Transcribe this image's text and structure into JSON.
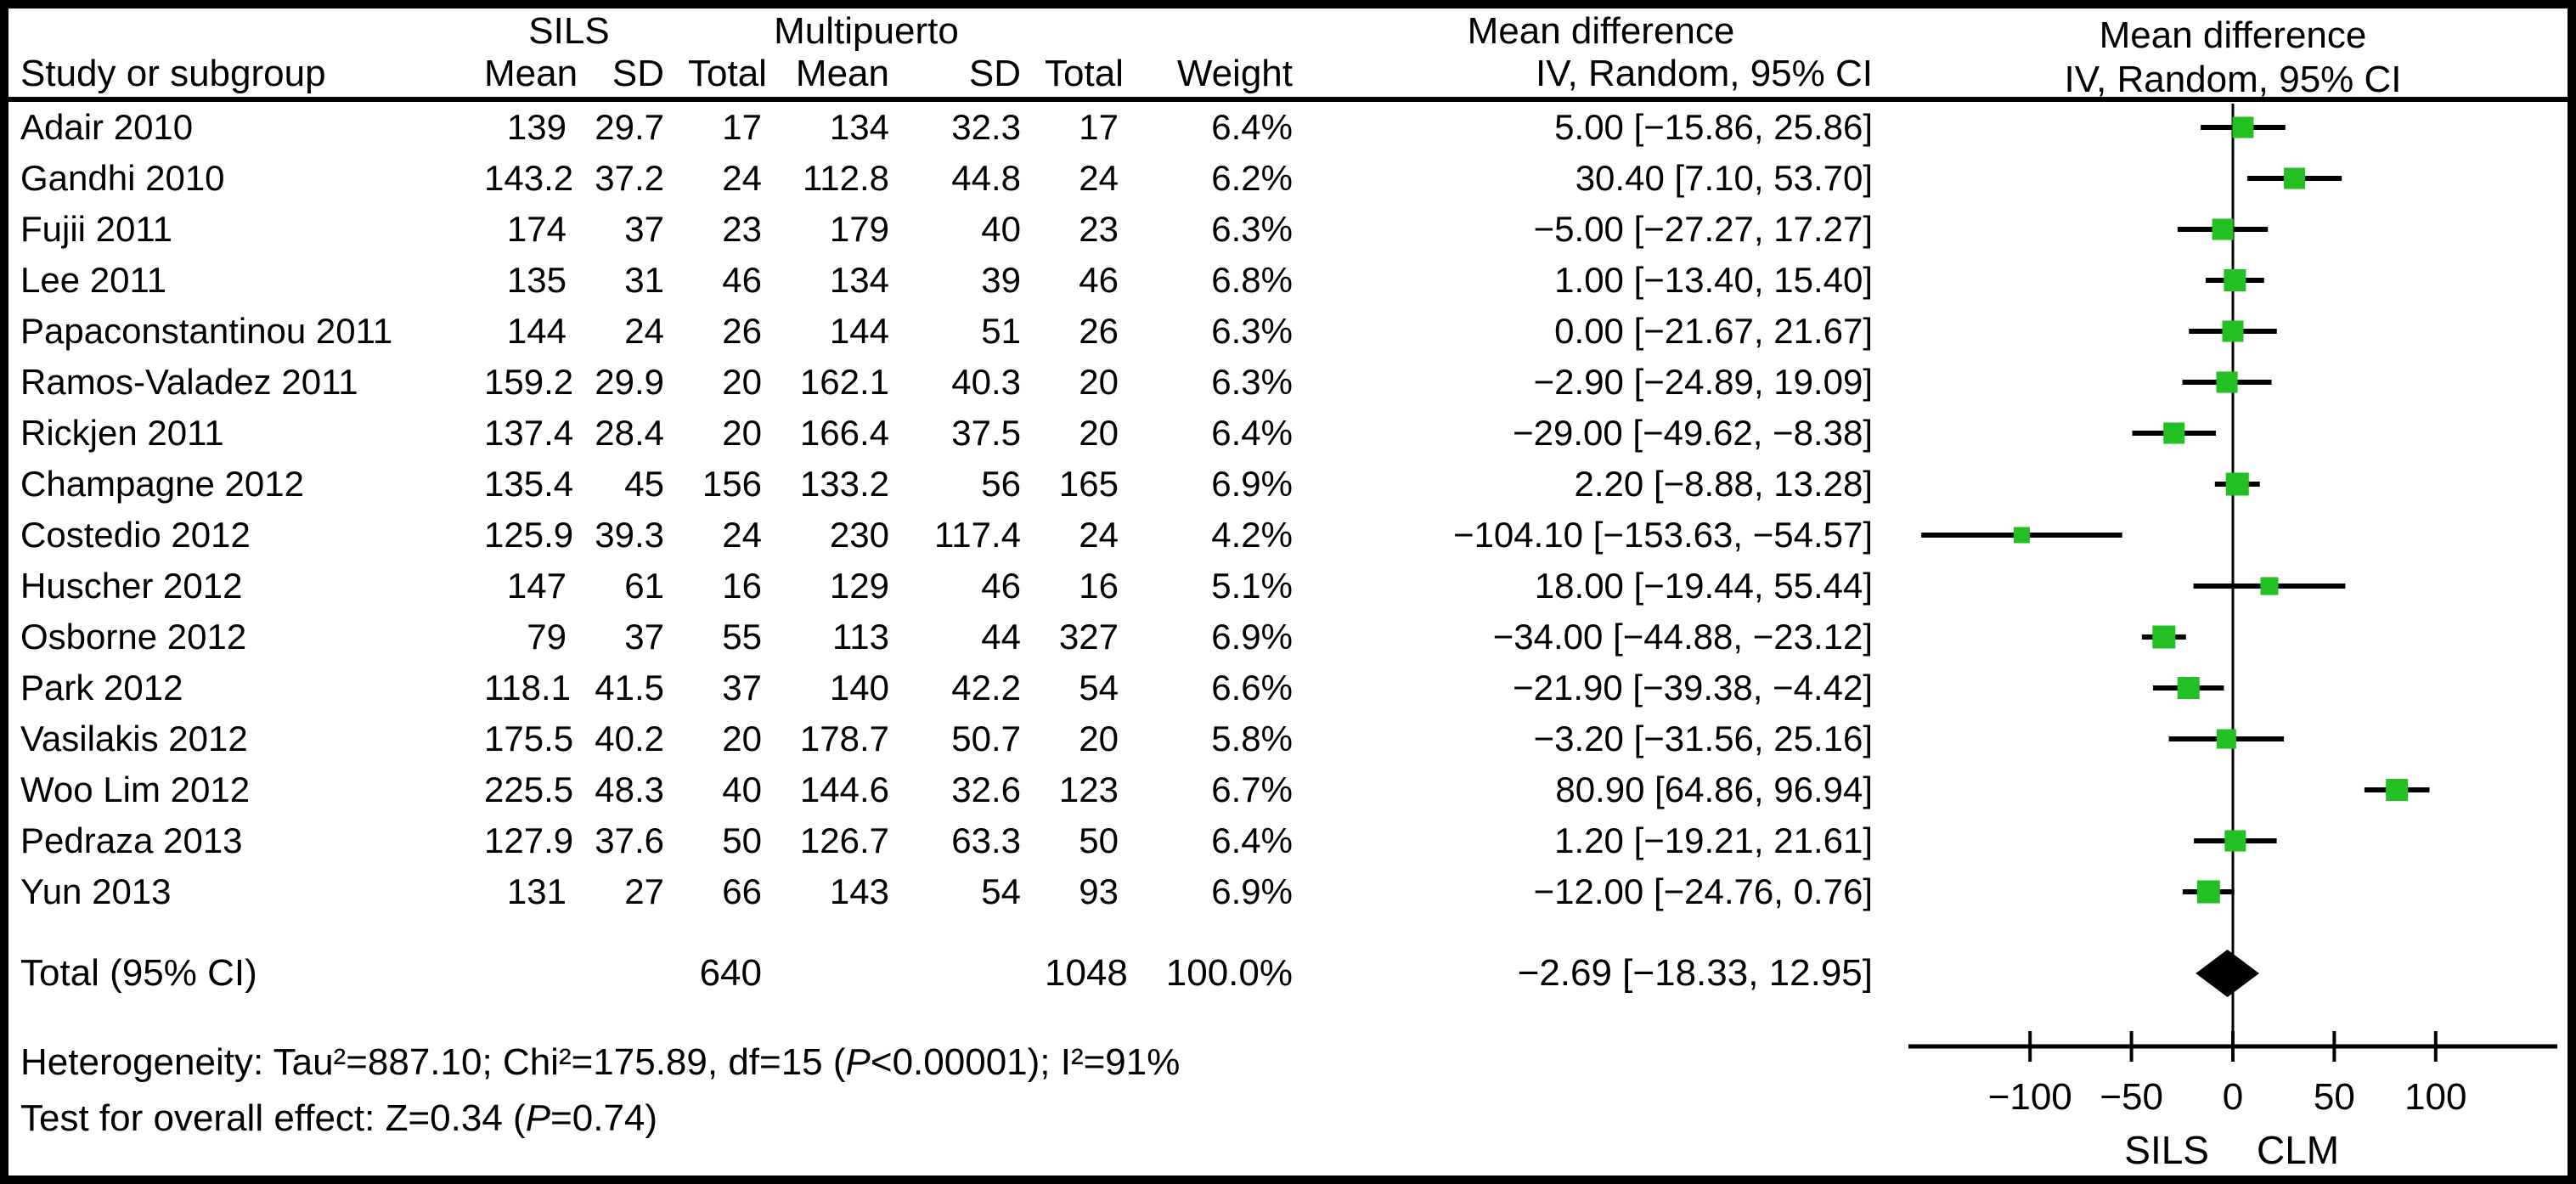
{
  "chart_data": {
    "type": "forest",
    "header": {
      "study_col": "Study or subgroup",
      "group1": "SILS",
      "group2": "Multipuerto",
      "mean": "Mean",
      "sd": "SD",
      "total": "Total",
      "weight": "Weight",
      "md_title": "Mean difference",
      "md_subtitle": "IV, Random, 95% CI",
      "plot_title": "Mean difference",
      "plot_subtitle": "IV, Random, 95% CI"
    },
    "studies": [
      {
        "name": "Adair 2010",
        "mean1": "139",
        "sd1": "29.7",
        "total1": "17",
        "mean2": "134",
        "sd2": "32.3",
        "total2": "17",
        "weight": "6.4%",
        "ci_text": "5.00 [−15.86, 25.86]",
        "est": 5.0,
        "lo": -15.86,
        "hi": 25.86
      },
      {
        "name": "Gandhi 2010",
        "mean1": "143.2",
        "sd1": "37.2",
        "total1": "24",
        "mean2": "112.8",
        "sd2": "44.8",
        "total2": "24",
        "weight": "6.2%",
        "ci_text": "30.40 [7.10, 53.70]",
        "est": 30.4,
        "lo": 7.1,
        "hi": 53.7
      },
      {
        "name": "Fujii 2011",
        "mean1": "174",
        "sd1": "37",
        "total1": "23",
        "mean2": "179",
        "sd2": "40",
        "total2": "23",
        "weight": "6.3%",
        "ci_text": "−5.00 [−27.27, 17.27]",
        "est": -5.0,
        "lo": -27.27,
        "hi": 17.27
      },
      {
        "name": "Lee 2011",
        "mean1": "135",
        "sd1": "31",
        "total1": "46",
        "mean2": "134",
        "sd2": "39",
        "total2": "46",
        "weight": "6.8%",
        "ci_text": "1.00 [−13.40, 15.40]",
        "est": 1.0,
        "lo": -13.4,
        "hi": 15.4
      },
      {
        "name": "Papaconstantinou 2011",
        "mean1": "144",
        "sd1": "24",
        "total1": "26",
        "mean2": "144",
        "sd2": "51",
        "total2": "26",
        "weight": "6.3%",
        "ci_text": "0.00 [−21.67, 21.67]",
        "est": 0.0,
        "lo": -21.67,
        "hi": 21.67
      },
      {
        "name": "Ramos-Valadez 2011",
        "mean1": "159.2",
        "sd1": "29.9",
        "total1": "20",
        "mean2": "162.1",
        "sd2": "40.3",
        "total2": "20",
        "weight": "6.3%",
        "ci_text": "−2.90 [−24.89, 19.09]",
        "est": -2.9,
        "lo": -24.89,
        "hi": 19.09
      },
      {
        "name": "Rickjen 2011",
        "mean1": "137.4",
        "sd1": "28.4",
        "total1": "20",
        "mean2": "166.4",
        "sd2": "37.5",
        "total2": "20",
        "weight": "6.4%",
        "ci_text": "−29.00 [−49.62, −8.38]",
        "est": -29.0,
        "lo": -49.62,
        "hi": -8.38
      },
      {
        "name": "Champagne 2012",
        "mean1": "135.4",
        "sd1": "45",
        "total1": "156",
        "mean2": "133.2",
        "sd2": "56",
        "total2": "165",
        "weight": "6.9%",
        "ci_text": "2.20 [−8.88, 13.28]",
        "est": 2.2,
        "lo": -8.88,
        "hi": 13.28
      },
      {
        "name": "Costedio 2012",
        "mean1": "125.9",
        "sd1": "39.3",
        "total1": "24",
        "mean2": "230",
        "sd2": "117.4",
        "total2": "24",
        "weight": "4.2%",
        "ci_text": "−104.10 [−153.63, −54.57]",
        "est": -104.1,
        "lo": -153.63,
        "hi": -54.57
      },
      {
        "name": "Huscher 2012",
        "mean1": "147",
        "sd1": "61",
        "total1": "16",
        "mean2": "129",
        "sd2": "46",
        "total2": "16",
        "weight": "5.1%",
        "ci_text": "18.00 [−19.44, 55.44]",
        "est": 18.0,
        "lo": -19.44,
        "hi": 55.44
      },
      {
        "name": "Osborne 2012",
        "mean1": "79",
        "sd1": "37",
        "total1": "55",
        "mean2": "113",
        "sd2": "44",
        "total2": "327",
        "weight": "6.9%",
        "ci_text": "−34.00 [−44.88, −23.12]",
        "est": -34.0,
        "lo": -44.88,
        "hi": -23.12
      },
      {
        "name": "Park 2012",
        "mean1": "118.1",
        "sd1": "41.5",
        "total1": "37",
        "mean2": "140",
        "sd2": "42.2",
        "total2": "54",
        "weight": "6.6%",
        "ci_text": "−21.90 [−39.38, −4.42]",
        "est": -21.9,
        "lo": -39.38,
        "hi": -4.42
      },
      {
        "name": "Vasilakis 2012",
        "mean1": "175.5",
        "sd1": "40.2",
        "total1": "20",
        "mean2": "178.7",
        "sd2": "50.7",
        "total2": "20",
        "weight": "5.8%",
        "ci_text": "−3.20 [−31.56, 25.16]",
        "est": -3.2,
        "lo": -31.56,
        "hi": 25.16
      },
      {
        "name": "Woo Lim 2012",
        "mean1": "225.5",
        "sd1": "48.3",
        "total1": "40",
        "mean2": "144.6",
        "sd2": "32.6",
        "total2": "123",
        "weight": "6.7%",
        "ci_text": "80.90 [64.86, 96.94]",
        "est": 80.9,
        "lo": 64.86,
        "hi": 96.94
      },
      {
        "name": "Pedraza 2013",
        "mean1": "127.9",
        "sd1": "37.6",
        "total1": "50",
        "mean2": "126.7",
        "sd2": "63.3",
        "total2": "50",
        "weight": "6.4%",
        "ci_text": "1.20 [−19.21, 21.61]",
        "est": 1.2,
        "lo": -19.21,
        "hi": 21.61
      },
      {
        "name": "Yun 2013",
        "mean1": "131",
        "sd1": "27",
        "total1": "66",
        "mean2": "143",
        "sd2": "54",
        "total2": "93",
        "weight": "6.9%",
        "ci_text": "−12.00 [−24.76, 0.76]",
        "est": -12.0,
        "lo": -24.76,
        "hi": 0.76
      }
    ],
    "total": {
      "label": "Total (95% CI)",
      "total1": "640",
      "total2": "1048",
      "weight": "100.0%",
      "ci_text": "−2.69 [−18.33, 12.95]",
      "est": -2.69,
      "lo": -18.33,
      "hi": 12.95
    },
    "footer": {
      "het_pre": "Heterogeneity: Tau²=887.10; Chi²=175.89, df=15 (",
      "het_p": "P",
      "het_post": "<0.00001); I²=91%",
      "effect_pre": "Test for overall effect: Z=0.34 (",
      "effect_p": "P",
      "effect_post": "=0.74)"
    },
    "axis": {
      "domain": [
        -165,
        165
      ],
      "ticks": [
        {
          "v": -100,
          "label": "−100"
        },
        {
          "v": -50,
          "label": "−50"
        },
        {
          "v": 0,
          "label": "0"
        },
        {
          "v": 50,
          "label": "50"
        },
        {
          "v": 100,
          "label": "100"
        }
      ],
      "favours_left": "SILS",
      "favours_right": "CLM"
    },
    "colors": {
      "marker_green": "#22c022",
      "line_black": "#000000"
    }
  }
}
